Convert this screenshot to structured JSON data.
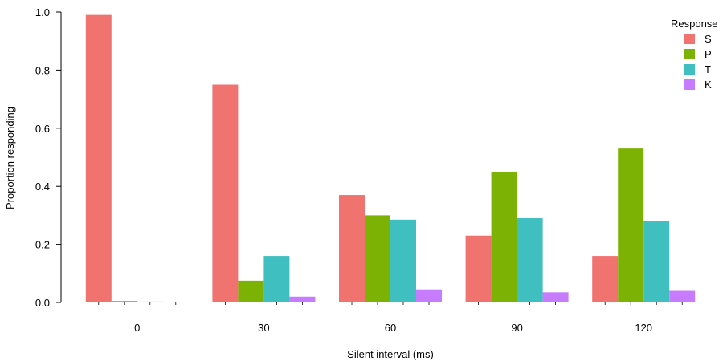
{
  "chart_data": {
    "type": "bar",
    "xlabel": "Silent interval (ms)",
    "ylabel": "Proportion responding",
    "categories": [
      "0",
      "30",
      "60",
      "90",
      "120"
    ],
    "ylim": [
      0,
      1.0
    ],
    "yticks": [
      "0.0",
      "0.2",
      "0.4",
      "0.6",
      "0.8",
      "1.0"
    ],
    "grid": false,
    "legend": {
      "title": "Response",
      "position": "top-right"
    },
    "series": [
      {
        "name": "S",
        "color": "#F07370",
        "values": [
          0.99,
          0.75,
          0.37,
          0.23,
          0.16
        ]
      },
      {
        "name": "P",
        "color": "#7CB204",
        "values": [
          0.005,
          0.075,
          0.3,
          0.45,
          0.53
        ]
      },
      {
        "name": "T",
        "color": "#40BFC1",
        "values": [
          0.003,
          0.16,
          0.285,
          0.29,
          0.28
        ]
      },
      {
        "name": "K",
        "color": "#C77CFF",
        "values": [
          0.002,
          0.02,
          0.045,
          0.035,
          0.04
        ]
      }
    ]
  }
}
